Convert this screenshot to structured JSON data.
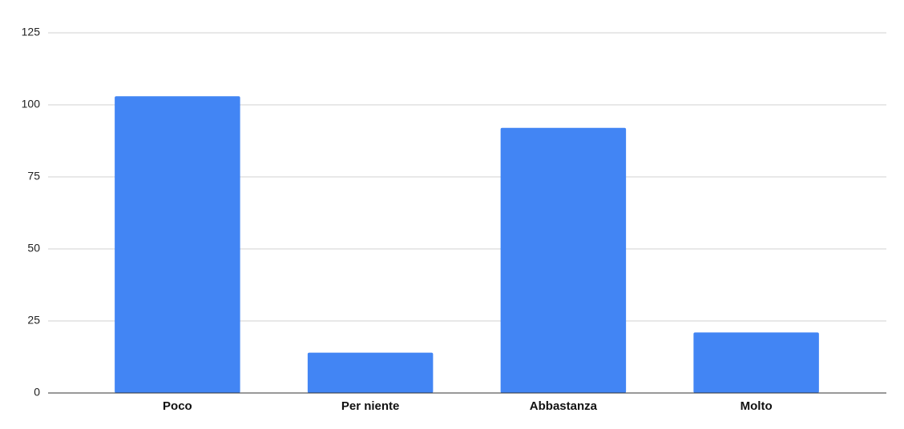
{
  "chart_data": {
    "type": "bar",
    "categories": [
      "Poco",
      "Per niente",
      "Abbastanza",
      "Molto"
    ],
    "values": [
      103,
      14,
      92,
      21
    ],
    "color": "#4285f4",
    "ylim": [
      0,
      125
    ],
    "yticks": [
      0,
      25,
      50,
      75,
      100,
      125
    ],
    "grid": true
  }
}
